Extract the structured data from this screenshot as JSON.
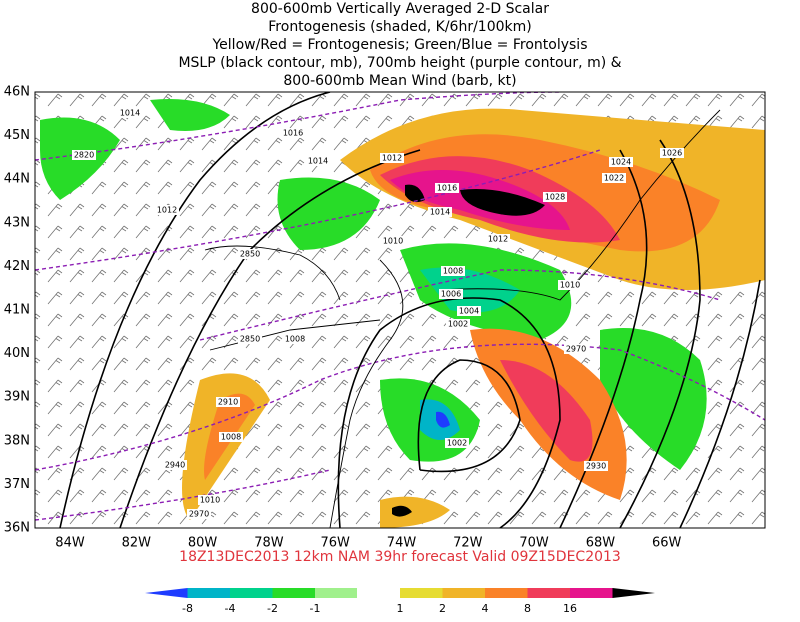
{
  "header": {
    "lines": [
      "800-600mb Vertically Averaged 2-D Scalar",
      "Frontogenesis (shaded, K/6hr/100km)",
      "Yellow/Red = Frontogenesis;  Green/Blue = Frontolysis",
      "MSLP (black contour, mb), 700mb height (purple contour, m) &",
      "800-600mb Mean Wind (barb, kt)"
    ]
  },
  "map": {
    "lat_labels": [
      "46N",
      "45N",
      "44N",
      "43N",
      "42N",
      "41N",
      "40N",
      "39N",
      "38N",
      "37N",
      "36N"
    ],
    "lon_labels": [
      "84W",
      "82W",
      "80W",
      "78W",
      "76W",
      "74W",
      "72W",
      "70W",
      "68W",
      "66W"
    ],
    "contour_labels": [
      "1014",
      "1016",
      "2820",
      "1014",
      "1012",
      "1012",
      "1016",
      "1014",
      "1010",
      "1012",
      "2850",
      "1008",
      "1010",
      "1006",
      "1004",
      "1002",
      "1008",
      "2850",
      "2970",
      "2910",
      "1008",
      "1002",
      "2940",
      "2930",
      "1010",
      "2970",
      "1024",
      "1026",
      "1022",
      "1028"
    ]
  },
  "footer": {
    "text": "18Z13DEC2013 12km NAM 39hr forecast Valid 09Z15DEC2013"
  },
  "colorbar": {
    "labels": [
      -8,
      -4,
      -2,
      -1,
      1,
      2,
      4,
      8,
      16
    ],
    "colors": [
      "#1e3cff",
      "#00b4c8",
      "#00d28c",
      "#28dc28",
      "#a0f08c",
      "#ffffff",
      "#e6dc32",
      "#f0b428",
      "#fa8228",
      "#f03c5a",
      "#e6148c",
      "#000000"
    ]
  }
}
